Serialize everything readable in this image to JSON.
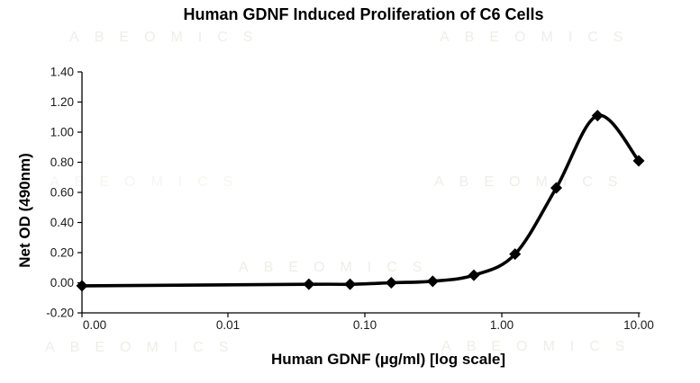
{
  "watermark": {
    "text": "ABEOMICS"
  },
  "chart_data": {
    "type": "line",
    "title": "Human GDNF Induced Proliferation of C6 Cells",
    "xlabel": "Human GDNF (µg/ml) [log scale]",
    "ylabel": "Net OD (490nm)",
    "x_scale": "log",
    "x": [
      0,
      0.039,
      0.078,
      0.156,
      0.313,
      0.625,
      1.25,
      2.5,
      5,
      10
    ],
    "y": [
      -0.02,
      -0.01,
      -0.01,
      0.0,
      0.01,
      0.05,
      0.19,
      0.63,
      1.11,
      0.81
    ],
    "series_name": "Net OD (490nm)",
    "x_ticks": [
      {
        "value": 0,
        "label": "0.00"
      },
      {
        "value": 0.01,
        "label": "0.01"
      },
      {
        "value": 0.1,
        "label": "0.10"
      },
      {
        "value": 1,
        "label": "1.00"
      },
      {
        "value": 10,
        "label": "10.00"
      }
    ],
    "y_ticks": [
      {
        "value": -0.2,
        "label": "-0.20"
      },
      {
        "value": 0.0,
        "label": "0.00"
      },
      {
        "value": 0.2,
        "label": "0.20"
      },
      {
        "value": 0.4,
        "label": "0.40"
      },
      {
        "value": 0.6,
        "label": "0.60"
      },
      {
        "value": 0.8,
        "label": "0.80"
      },
      {
        "value": 1.0,
        "label": "1.00"
      },
      {
        "value": 1.2,
        "label": "1.20"
      },
      {
        "value": 1.4,
        "label": "1.40"
      }
    ],
    "ylim": [
      -0.2,
      1.4
    ],
    "grid": false,
    "legend": "none",
    "marker": "diamond",
    "line_color": "#000000",
    "marker_color": "#000000",
    "axis_color": "#000000",
    "tick_label_color": "#1a1a1a"
  }
}
